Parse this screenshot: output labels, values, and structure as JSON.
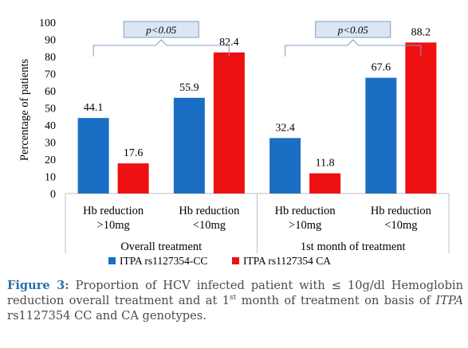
{
  "chart_data": {
    "type": "bar",
    "ylabel": "Percentage of patients",
    "ylim": [
      0,
      100
    ],
    "yticks": [
      0,
      10,
      20,
      30,
      40,
      50,
      60,
      70,
      80,
      90,
      100
    ],
    "grid": false,
    "legend_position": "bottom",
    "groups": [
      {
        "label": "Overall treatment",
        "categories": [
          {
            "line1": "Hb reduction",
            "line2": ">10mg"
          },
          {
            "line1": "Hb reduction",
            "line2": "<10mg"
          }
        ],
        "significance": "p<0.05"
      },
      {
        "label": "1st month of treatment",
        "categories": [
          {
            "line1": "Hb reduction",
            "line2": ">10mg"
          },
          {
            "line1": "Hb reduction",
            "line2": "<10mg"
          }
        ],
        "significance": "p<0.05"
      }
    ],
    "series": [
      {
        "name": "ITPA rs1127354-CC",
        "color": "#1a6fc4",
        "values": [
          44.1,
          55.9,
          32.4,
          67.6
        ]
      },
      {
        "name": "ITPA rs1127354 CA",
        "color": "#ee1111",
        "values": [
          17.6,
          82.4,
          11.8,
          88.2
        ]
      }
    ]
  },
  "caption": {
    "lead": "Figure 3:",
    "text1": " Proportion of HCV infected patient with ≤ 10g/dl Hemoglobin reduction overall treatment and at 1",
    "sup": "st",
    "text2": " month of treatment on basis of ",
    "italic": "ITPA",
    "text3": " rs1127354 CC and CA genotypes."
  }
}
